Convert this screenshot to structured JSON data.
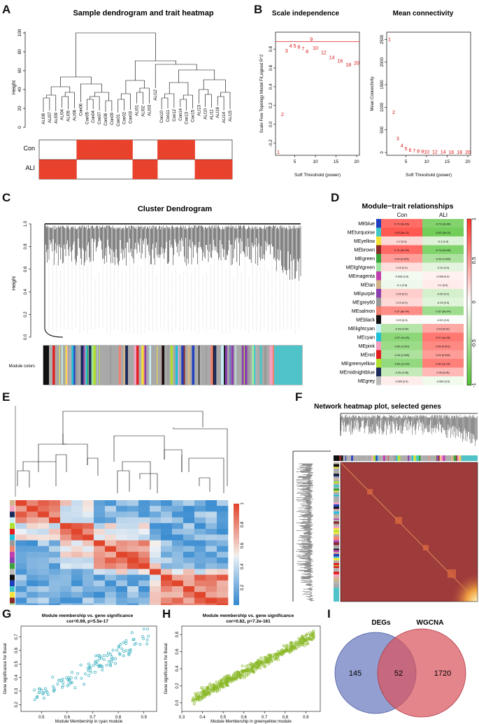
{
  "colors": {
    "red": "#e8412c",
    "white": "#ffffff",
    "cyan": "#4fc3c8",
    "lime": "#9acd32",
    "venn_left": "#6f7fc0",
    "venn_right": "#d9545e",
    "heat_bg": "#9e3b3b"
  },
  "panels": {
    "A": {
      "label": "A",
      "title": "Sample dendrogram and trait heatmap",
      "ylabel": "Height",
      "yticks": [
        "0",
        "20",
        "40",
        "60",
        "80",
        "100"
      ],
      "samples": [
        "ALI08",
        "ALI07",
        "ALI09",
        "ALI04",
        "ALI05",
        "ALI06",
        "Con06",
        "Con05",
        "Con04",
        "Con07",
        "Con08",
        "Con09",
        "Con01",
        "Con02",
        "Con03",
        "ALI01",
        "ALI02",
        "ALI03",
        "ALI12",
        "Con10",
        "Con11",
        "Con12",
        "Con14",
        "Con13",
        "Con15",
        "ALI13",
        "ALI10",
        "ALI11",
        "ALI16",
        "ALI14",
        "ALI15"
      ],
      "traits": [
        "Con",
        "ALI"
      ]
    },
    "B": {
      "label": "B",
      "left": {
        "title": "Scale independence",
        "xlabel": "Soft Threshold (power)",
        "ylabel": "Scale Free Topology Model Fit,signed R^2",
        "yticks": [
          "-0.2",
          "0.0",
          "0.2",
          "0.4",
          "0.6",
          "0.8"
        ],
        "xticks": [
          "5",
          "10",
          "15",
          "20"
        ]
      },
      "right": {
        "title": "Mean connectivity",
        "xlabel": "Soft Threshold (power)",
        "ylabel": "Mean Connectivity",
        "yticks": [
          "0",
          "500",
          "1000",
          "1500",
          "2000",
          "2500"
        ],
        "xticks": [
          "5",
          "10",
          "15",
          "20"
        ]
      }
    },
    "C": {
      "label": "C",
      "title": "Cluster Dendrogram",
      "ylabel": "Height",
      "yticks": [
        "0.0",
        "0.2",
        "0.4",
        "0.6",
        "0.8",
        "1.0"
      ],
      "module_label": "Module colors"
    },
    "D": {
      "label": "D",
      "title": "Module−trait relationships",
      "columns": [
        "Con",
        "ALI"
      ],
      "scale_ticks": [
        "1",
        "0.5",
        "0",
        "-0.5",
        "-1"
      ],
      "modules": [
        {
          "name": "MEblue",
          "color": "#1f3fbf",
          "con": "0.73 (3e-06)",
          "ali": "-0.73 (3e-06)",
          "r": 0.73
        },
        {
          "name": "MEturquoise",
          "color": "#40c8c8",
          "con": "0.83 (3e-11)",
          "ali": "-0.83 (3e-11)",
          "r": 0.83
        },
        {
          "name": "MEyellow",
          "color": "#f2e23a",
          "con": "0.2 (0.3)",
          "ali": "-0.2 (0.3)",
          "r": 0.2
        },
        {
          "name": "MEbrown",
          "color": "#8b2a2a",
          "con": "0.74 (3e-06)",
          "ali": "-0.74 (3e-06)",
          "r": 0.74
        },
        {
          "name": "MEgreen",
          "color": "#3aa33a",
          "con": "0.49 (0.005)",
          "ali": "-0.49 (0.005)",
          "r": 0.49
        },
        {
          "name": "MElightgreen",
          "color": "#a0e6a0",
          "con": "0.16 (0.4)",
          "ali": "-0.16 (0.4)",
          "r": 0.16
        },
        {
          "name": "MEmagenta",
          "color": "#c040b0",
          "con": "-0.068 (0.6)",
          "ali": "0.068 (0.6)",
          "r": -0.07
        },
        {
          "name": "MEtan",
          "color": "#d2b48c",
          "con": "-0.1 (0.6)",
          "ali": "0.1 (0.6)",
          "r": -0.1
        },
        {
          "name": "MEpurple",
          "color": "#8a3fb0",
          "con": "0.25 (0.2)",
          "ali": "-0.25 (0.2)",
          "r": 0.25
        },
        {
          "name": "MEgrey60",
          "color": "#999999",
          "con": "0.19 (0.3)",
          "ali": "-0.19 (0.3)",
          "r": 0.19
        },
        {
          "name": "MEsalmon",
          "color": "#f08070",
          "con": "0.57 (8e-04)",
          "ali": "-0.57 (8e-04)",
          "r": 0.57
        },
        {
          "name": "MEblack",
          "color": "#111111",
          "con": "0.03 (0.9)",
          "ali": "-0.03 (0.9)",
          "r": 0.03
        },
        {
          "name": "MElightcyan",
          "color": "#c8f0f5",
          "con": "-0.43 (0.02)",
          "ali": "0.43 (0.02)",
          "r": -0.43
        },
        {
          "name": "MEcyan",
          "color": "#20c0d8",
          "con": "-0.67 (4e-05)",
          "ali": "0.67 (4e-05)",
          "r": -0.67
        },
        {
          "name": "MEpink",
          "color": "#f5a0c0",
          "con": "-0.59 (0.001)",
          "ali": "0.59 (0.001)",
          "r": -0.59
        },
        {
          "name": "MEred",
          "color": "#e02020",
          "con": "-0.49 (0.005)",
          "ali": "0.49 (0.005)",
          "r": -0.49
        },
        {
          "name": "MEgreenyellow",
          "color": "#b0e030",
          "con": "-0.64 (1e-04)",
          "ali": "0.64 (1e-04)",
          "r": -0.64
        },
        {
          "name": "MEmidnightblue",
          "color": "#1a2a5a",
          "con": "-0.35 (0.05)",
          "ali": "0.35 (0.05)",
          "r": -0.35
        },
        {
          "name": "MEgrey",
          "color": "#bbbbbb",
          "con": "0.089 (0.6)",
          "ali": "-0.089 (0.6)",
          "r": 0.09
        }
      ]
    },
    "E": {
      "label": "E",
      "scale_ticks": [
        "1",
        "0.8",
        "0.6",
        "0.4",
        "0.2",
        "0"
      ]
    },
    "F": {
      "label": "F",
      "title": "Network heatmap plot, selected genes"
    },
    "G": {
      "label": "G",
      "title": "Module membership vs. gene significance",
      "subtitle": "cor=0.69, p=5.5e-17",
      "xlabel": "Module Membership in cyan module",
      "ylabel": "Gene significance for Basal",
      "xticks": [
        "0.5",
        "0.6",
        "0.7",
        "0.8",
        "0.9"
      ],
      "yticks": [
        "0.2",
        "0.3",
        "0.4",
        "0.5",
        "0.6",
        "0.7"
      ]
    },
    "H": {
      "label": "H",
      "title": "Module membership vs. gene significance",
      "subtitle": "cor=0.82, p=7.2e-161",
      "xlabel": "Module Membership in greenyellow module",
      "ylabel": "Gene significance for Basal",
      "xticks": [
        "0.3",
        "0.4",
        "0.5",
        "0.6",
        "0.7",
        "0.8",
        "0.9"
      ],
      "yticks": [
        "0.0",
        "0.2",
        "0.4",
        "0.6",
        "0.8"
      ]
    },
    "I": {
      "label": "I",
      "left_label": "DEGs",
      "right_label": "WGCNA",
      "left_only": "145",
      "overlap": "52",
      "right_only": "1720"
    }
  },
  "chart_data": [
    {
      "type": "scatter",
      "title": "Scale independence",
      "xlabel": "Soft Threshold (power)",
      "ylabel": "Scale Free Topology Model Fit,signed R^2",
      "x": [
        1,
        2,
        3,
        4,
        5,
        6,
        7,
        8,
        9,
        10,
        12,
        14,
        16,
        18,
        20
      ],
      "y": [
        -0.3,
        0.1,
        0.78,
        0.83,
        0.83,
        0.82,
        0.8,
        0.77,
        0.9,
        0.81,
        0.76,
        0.71,
        0.67,
        0.63,
        0.65
      ],
      "xlim": [
        1,
        20
      ],
      "ylim": [
        -0.3,
        0.95
      ],
      "hline": 0.88
    },
    {
      "type": "scatter",
      "title": "Mean connectivity",
      "xlabel": "Soft Threshold (power)",
      "ylabel": "Mean Connectivity",
      "x": [
        1,
        2,
        3,
        4,
        5,
        6,
        7,
        8,
        9,
        10,
        12,
        14,
        16,
        18,
        20
      ],
      "y": [
        2500,
        880,
        300,
        150,
        80,
        45,
        30,
        20,
        15,
        10,
        6,
        4,
        3,
        2,
        1
      ],
      "xlim": [
        1,
        20
      ],
      "ylim": [
        0,
        2600
      ]
    },
    {
      "type": "heatmap",
      "title": "Module−trait relationships",
      "categories": [
        "Con",
        "ALI"
      ]
    },
    {
      "type": "scatter",
      "title": "Module membership vs. gene significance",
      "subtitle": "cor=0.69, p=5.5e-17",
      "xlim": [
        0.42,
        0.95
      ],
      "ylim": [
        0.15,
        0.78
      ]
    },
    {
      "type": "scatter",
      "title": "Module membership vs. gene significance",
      "subtitle": "cor=0.82, p=7.2e-161",
      "xlim": [
        0.3,
        0.97
      ],
      "ylim": [
        -0.1,
        0.9
      ]
    }
  ]
}
